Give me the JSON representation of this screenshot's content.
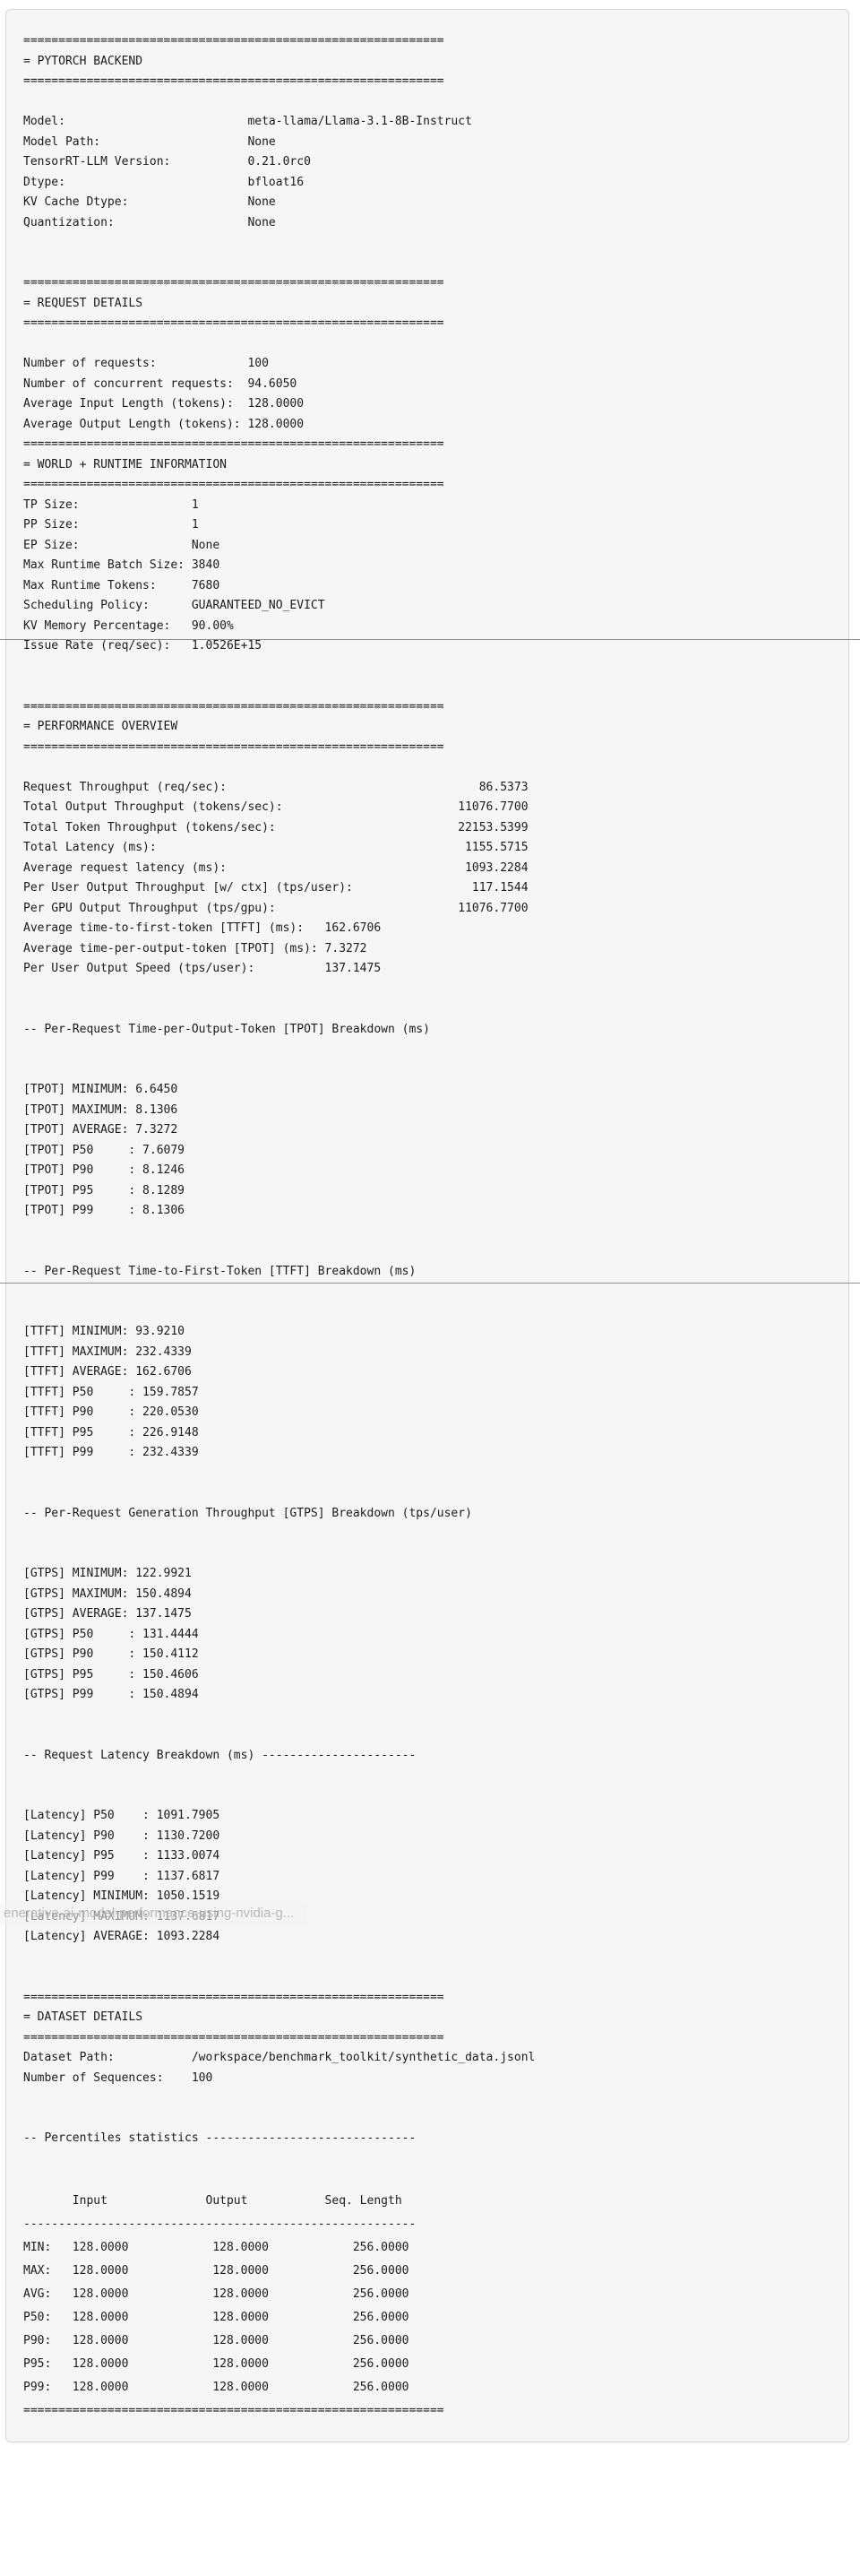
{
  "colors": {
    "page_background": "#ffffff",
    "panel_background": "#f6f6f6",
    "panel_border": "#d5d5d5",
    "text": "#1b1b1b",
    "seam_line": "#8f8f8f",
    "tooltip_text": "#a5a5a5"
  },
  "overlay": {
    "link_preview": "enerative-ai-model-performance-using-nvidia-g..."
  },
  "report": {
    "backend": {
      "title": "= PYTORCH BACKEND",
      "model": "meta-llama/Llama-3.1-8B-Instruct",
      "model_path": "None",
      "tensorrt_llm_version": "0.21.0rc0",
      "dtype": "bfloat16",
      "kv_cache_dtype": "None",
      "quantization": "None"
    },
    "request_details": {
      "number_of_requests": "100",
      "number_of_concurrent_requests": "94.6050",
      "average_input_length_tokens": "128.0000",
      "average_output_length_tokens": "128.0000"
    },
    "world_runtime": {
      "tp_size": "1",
      "pp_size": "1",
      "ep_size": "None",
      "max_runtime_batch_size": "3840",
      "max_runtime_tokens": "7680",
      "scheduling_policy": "GUARANTEED_NO_EVICT",
      "kv_memory_percentage": "90.00%",
      "issue_rate_req_sec": "1.0526E+15"
    },
    "performance_overview": {
      "request_throughput_req_sec": "86.5373",
      "total_output_throughput_tokens_sec": "11076.7700",
      "total_token_throughput_tokens_sec": "22153.5399",
      "total_latency_ms": "1155.5715",
      "average_request_latency_ms": "1093.2284",
      "per_user_output_throughput_w_ctx_tps_user": "117.1544",
      "per_gpu_output_throughput_tps_gpu": "11076.7700",
      "average_ttft_ms": "162.6706",
      "average_tpot_ms": "7.3272",
      "per_user_output_speed_tps_user": "137.1475"
    },
    "tpot_breakdown_ms": {
      "minimum": "6.6450",
      "maximum": "8.1306",
      "average": "7.3272",
      "p50": "7.6079",
      "p90": "8.1246",
      "p95": "8.1289",
      "p99": "8.1306"
    },
    "ttft_breakdown_ms": {
      "minimum": "93.9210",
      "maximum": "232.4339",
      "average": "162.6706",
      "p50": "159.7857",
      "p90": "220.0530",
      "p95": "226.9148",
      "p99": "232.4339"
    },
    "gtps_breakdown_tps_user": {
      "minimum": "122.9921",
      "maximum": "150.4894",
      "average": "137.1475",
      "p50": "131.4444",
      "p90": "150.4112",
      "p95": "150.4606",
      "p99": "150.4894"
    },
    "latency_breakdown_ms": {
      "p50": "1091.7905",
      "p90": "1130.7200",
      "p95": "1133.0074",
      "p99": "1137.6817",
      "minimum": "1050.1519",
      "maximum": "1137.6817",
      "average": "1093.2284"
    },
    "dataset_details": {
      "dataset_path": "/workspace/benchmark_toolkit/synthetic_data.jsonl",
      "number_of_sequences": "100"
    },
    "percentiles_statistics": {
      "columns": [
        "Input",
        "Output",
        "Seq. Length"
      ],
      "rows": [
        {
          "label": "MIN",
          "input": "128.0000",
          "output": "128.0000",
          "seq_length": "256.0000"
        },
        {
          "label": "MAX",
          "input": "128.0000",
          "output": "128.0000",
          "seq_length": "256.0000"
        },
        {
          "label": "AVG",
          "input": "128.0000",
          "output": "128.0000",
          "seq_length": "256.0000"
        },
        {
          "label": "P50",
          "input": "128.0000",
          "output": "128.0000",
          "seq_length": "256.0000"
        },
        {
          "label": "P90",
          "input": "128.0000",
          "output": "128.0000",
          "seq_length": "256.0000"
        },
        {
          "label": "P95",
          "input": "128.0000",
          "output": "128.0000",
          "seq_length": "256.0000"
        },
        {
          "label": "P99",
          "input": "128.0000",
          "output": "128.0000",
          "seq_length": "256.0000"
        }
      ]
    }
  },
  "terminal": {
    "lines": [
      "============================================================",
      "= PYTORCH BACKEND",
      "============================================================",
      "",
      "Model:                          meta-llama/Llama-3.1-8B-Instruct",
      "Model Path:                     None",
      "TensorRT-LLM Version:           0.21.0rc0",
      "Dtype:                          bfloat16",
      "KV Cache Dtype:                 None",
      "Quantization:                   None",
      "",
      "",
      "============================================================",
      "= REQUEST DETAILS",
      "============================================================",
      "",
      "Number of requests:             100",
      "Number of concurrent requests:  94.6050",
      "Average Input Length (tokens):  128.0000",
      "Average Output Length (tokens): 128.0000",
      "============================================================",
      "= WORLD + RUNTIME INFORMATION",
      "============================================================",
      "TP Size:                1",
      "PP Size:                1",
      "EP Size:                None",
      "Max Runtime Batch Size: 3840",
      "Max Runtime Tokens:     7680",
      "Scheduling Policy:      GUARANTEED_NO_EVICT",
      "KV Memory Percentage:   90.00%",
      "Issue Rate (req/sec):   1.0526E+15",
      "",
      "",
      "============================================================",
      "= PERFORMANCE OVERVIEW",
      "============================================================",
      "",
      "Request Throughput (req/sec):                                    86.5373",
      "Total Output Throughput (tokens/sec):                         11076.7700",
      "Total Token Throughput (tokens/sec):                          22153.5399",
      "Total Latency (ms):                                            1155.5715",
      "Average request latency (ms):                                  1093.2284",
      "Per User Output Throughput [w/ ctx] (tps/user):                 117.1544",
      "Per GPU Output Throughput (tps/gpu):                          11076.7700",
      "Average time-to-first-token [TTFT] (ms):   162.6706",
      "Average time-per-output-token [TPOT] (ms): 7.3272",
      "Per User Output Speed (tps/user):          137.1475",
      "",
      "",
      "-- Per-Request Time-per-Output-Token [TPOT] Breakdown (ms)",
      "",
      "",
      "[TPOT] MINIMUM: 6.6450",
      "[TPOT] MAXIMUM: 8.1306",
      "[TPOT] AVERAGE: 7.3272",
      "[TPOT] P50     : 7.6079",
      "[TPOT] P90     : 8.1246",
      "[TPOT] P95     : 8.1289",
      "[TPOT] P99     : 8.1306",
      "",
      "",
      "-- Per-Request Time-to-First-Token [TTFT] Breakdown (ms)",
      "",
      "",
      "[TTFT] MINIMUM: 93.9210",
      "[TTFT] MAXIMUM: 232.4339",
      "[TTFT] AVERAGE: 162.6706",
      "[TTFT] P50     : 159.7857",
      "[TTFT] P90     : 220.0530",
      "[TTFT] P95     : 226.9148",
      "[TTFT] P99     : 232.4339",
      "",
      "",
      "-- Per-Request Generation Throughput [GTPS] Breakdown (tps/user)",
      "",
      "",
      "[GTPS] MINIMUM: 122.9921",
      "[GTPS] MAXIMUM: 150.4894",
      "[GTPS] AVERAGE: 137.1475",
      "[GTPS] P50     : 131.4444",
      "[GTPS] P90     : 150.4112",
      "[GTPS] P95     : 150.4606",
      "[GTPS] P99     : 150.4894",
      "",
      "",
      "-- Request Latency Breakdown (ms) ----------------------",
      "",
      "",
      "[Latency] P50    : 1091.7905",
      "[Latency] P90    : 1130.7200",
      "[Latency] P95    : 1133.0074",
      "[Latency] P99    : 1137.6817",
      "[Latency] MINIMUM: 1050.1519",
      "[Latency] MAXIMUM: 1137.6817",
      "[Latency] AVERAGE: 1093.2284",
      "",
      "",
      "============================================================",
      "= DATASET DETAILS",
      "============================================================",
      "Dataset Path:           /workspace/benchmark_toolkit/synthetic_data.jsonl",
      "Number of Sequences:    100",
      "",
      "",
      "-- Percentiles statistics ------------------------------",
      "",
      ""
    ],
    "table_lines": [
      "       Input              Output           Seq. Length",
      "--------------------------------------------------------",
      "MIN:   128.0000            128.0000            256.0000",
      "MAX:   128.0000            128.0000            256.0000",
      "AVG:   128.0000            128.0000            256.0000",
      "P50:   128.0000            128.0000            256.0000",
      "P90:   128.0000            128.0000            256.0000",
      "P95:   128.0000            128.0000            256.0000",
      "P99:   128.0000            128.0000            256.0000",
      "============================================================"
    ]
  }
}
